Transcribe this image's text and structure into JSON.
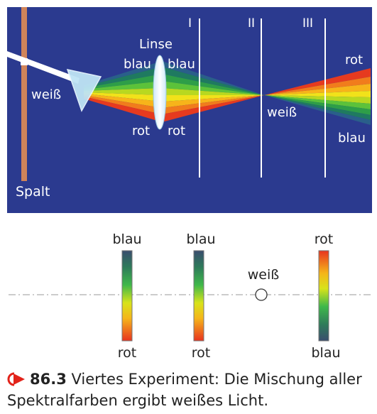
{
  "top_panel": {
    "background_color": "#2b3a8f",
    "slit_label": "Spalt",
    "lens_label": "Linse",
    "white_label_left": "weiß",
    "white_label_center": "weiß",
    "blue_left": "blau",
    "blue_right": "blau",
    "red_left": "rot",
    "red_right": "rot",
    "screen_labels": [
      "I",
      "II",
      "III"
    ],
    "right_top_label": "rot",
    "right_bottom_label": "blau"
  },
  "bottom_panel": {
    "strips": [
      {
        "top": "blau",
        "bottom": "rot"
      },
      {
        "top": "blau",
        "bottom": "rot"
      },
      {
        "top": "rot",
        "bottom": "blau"
      }
    ],
    "center_label": "weiß"
  },
  "caption": {
    "number": "86.3",
    "text": "Viertes Experiment: Die Mischung aller Spektralfarben ergibt weißes Licht.",
    "icon": "play-arrow-icon",
    "accent_color": "#e2231a"
  }
}
